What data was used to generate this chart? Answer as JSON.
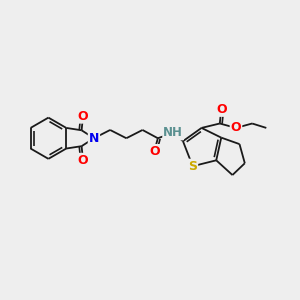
{
  "background_color": "#eeeeee",
  "bond_color": "#1a1a1a",
  "atom_colors": {
    "O": "#ff0000",
    "N": "#0000ee",
    "S": "#ccaa00",
    "H": "#5a9090",
    "C": "#1a1a1a"
  },
  "figsize": [
    3.0,
    3.0
  ],
  "dpi": 100
}
